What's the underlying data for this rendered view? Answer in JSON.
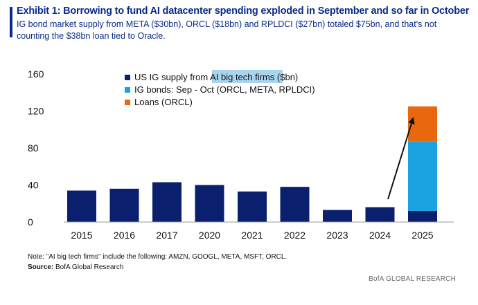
{
  "header": {
    "title": "Exhibit 1:  Borrowing to fund AI datacenter spending exploded in September and so far in October",
    "subtitle": "IG bond market supply from META ($30bn), ORCL ($18bn) and RPLDCI ($27bn) totaled $75bn, and that's not counting the $38bn loan tied to Oracle."
  },
  "footer": {
    "note": "Note: \"AI big tech firms\" include the following: AMZN, GOOGL, META, MSFT, ORCL.",
    "source_label": "Source:",
    "source_text": " BofA Global Research",
    "brand": "BofA GLOBAL RESEARCH"
  },
  "colors": {
    "navy": "#0a1f6e",
    "light_blue": "#1aa3e0",
    "orange": "#e8670f",
    "legend_highlight": "#a9d4ee",
    "accent": "#0a2a8a"
  },
  "chart_data": {
    "type": "bar",
    "stacked": true,
    "categories": [
      "2015",
      "2016",
      "2017",
      "2020",
      "2021",
      "2022",
      "2023",
      "2024",
      "2025"
    ],
    "series": [
      {
        "name": "US IG supply from AI big tech firms ($bn)",
        "color": "#0a1f6e",
        "values": [
          34,
          36,
          43,
          40,
          33,
          38,
          13,
          16,
          12
        ]
      },
      {
        "name": "IG bonds: Sep - Oct (ORCL, META, RPLDCI)",
        "color": "#1aa3e0",
        "values": [
          0,
          0,
          0,
          0,
          0,
          0,
          0,
          0,
          75
        ]
      },
      {
        "name": "Loans (ORCL)",
        "color": "#e8670f",
        "values": [
          0,
          0,
          0,
          0,
          0,
          0,
          0,
          0,
          38
        ]
      }
    ],
    "legend_parts": {
      "first_prefix": "US IG supply from ",
      "first_highlight": "AI big tech firms",
      "first_suffix": " ($bn)"
    },
    "yticks": [
      0,
      40,
      80,
      120,
      160
    ],
    "ylim": [
      0,
      160
    ],
    "legend_position": "top-left",
    "annotation": "arrow pointing up from 2024 bar to 2025 bar",
    "grid": false
  }
}
